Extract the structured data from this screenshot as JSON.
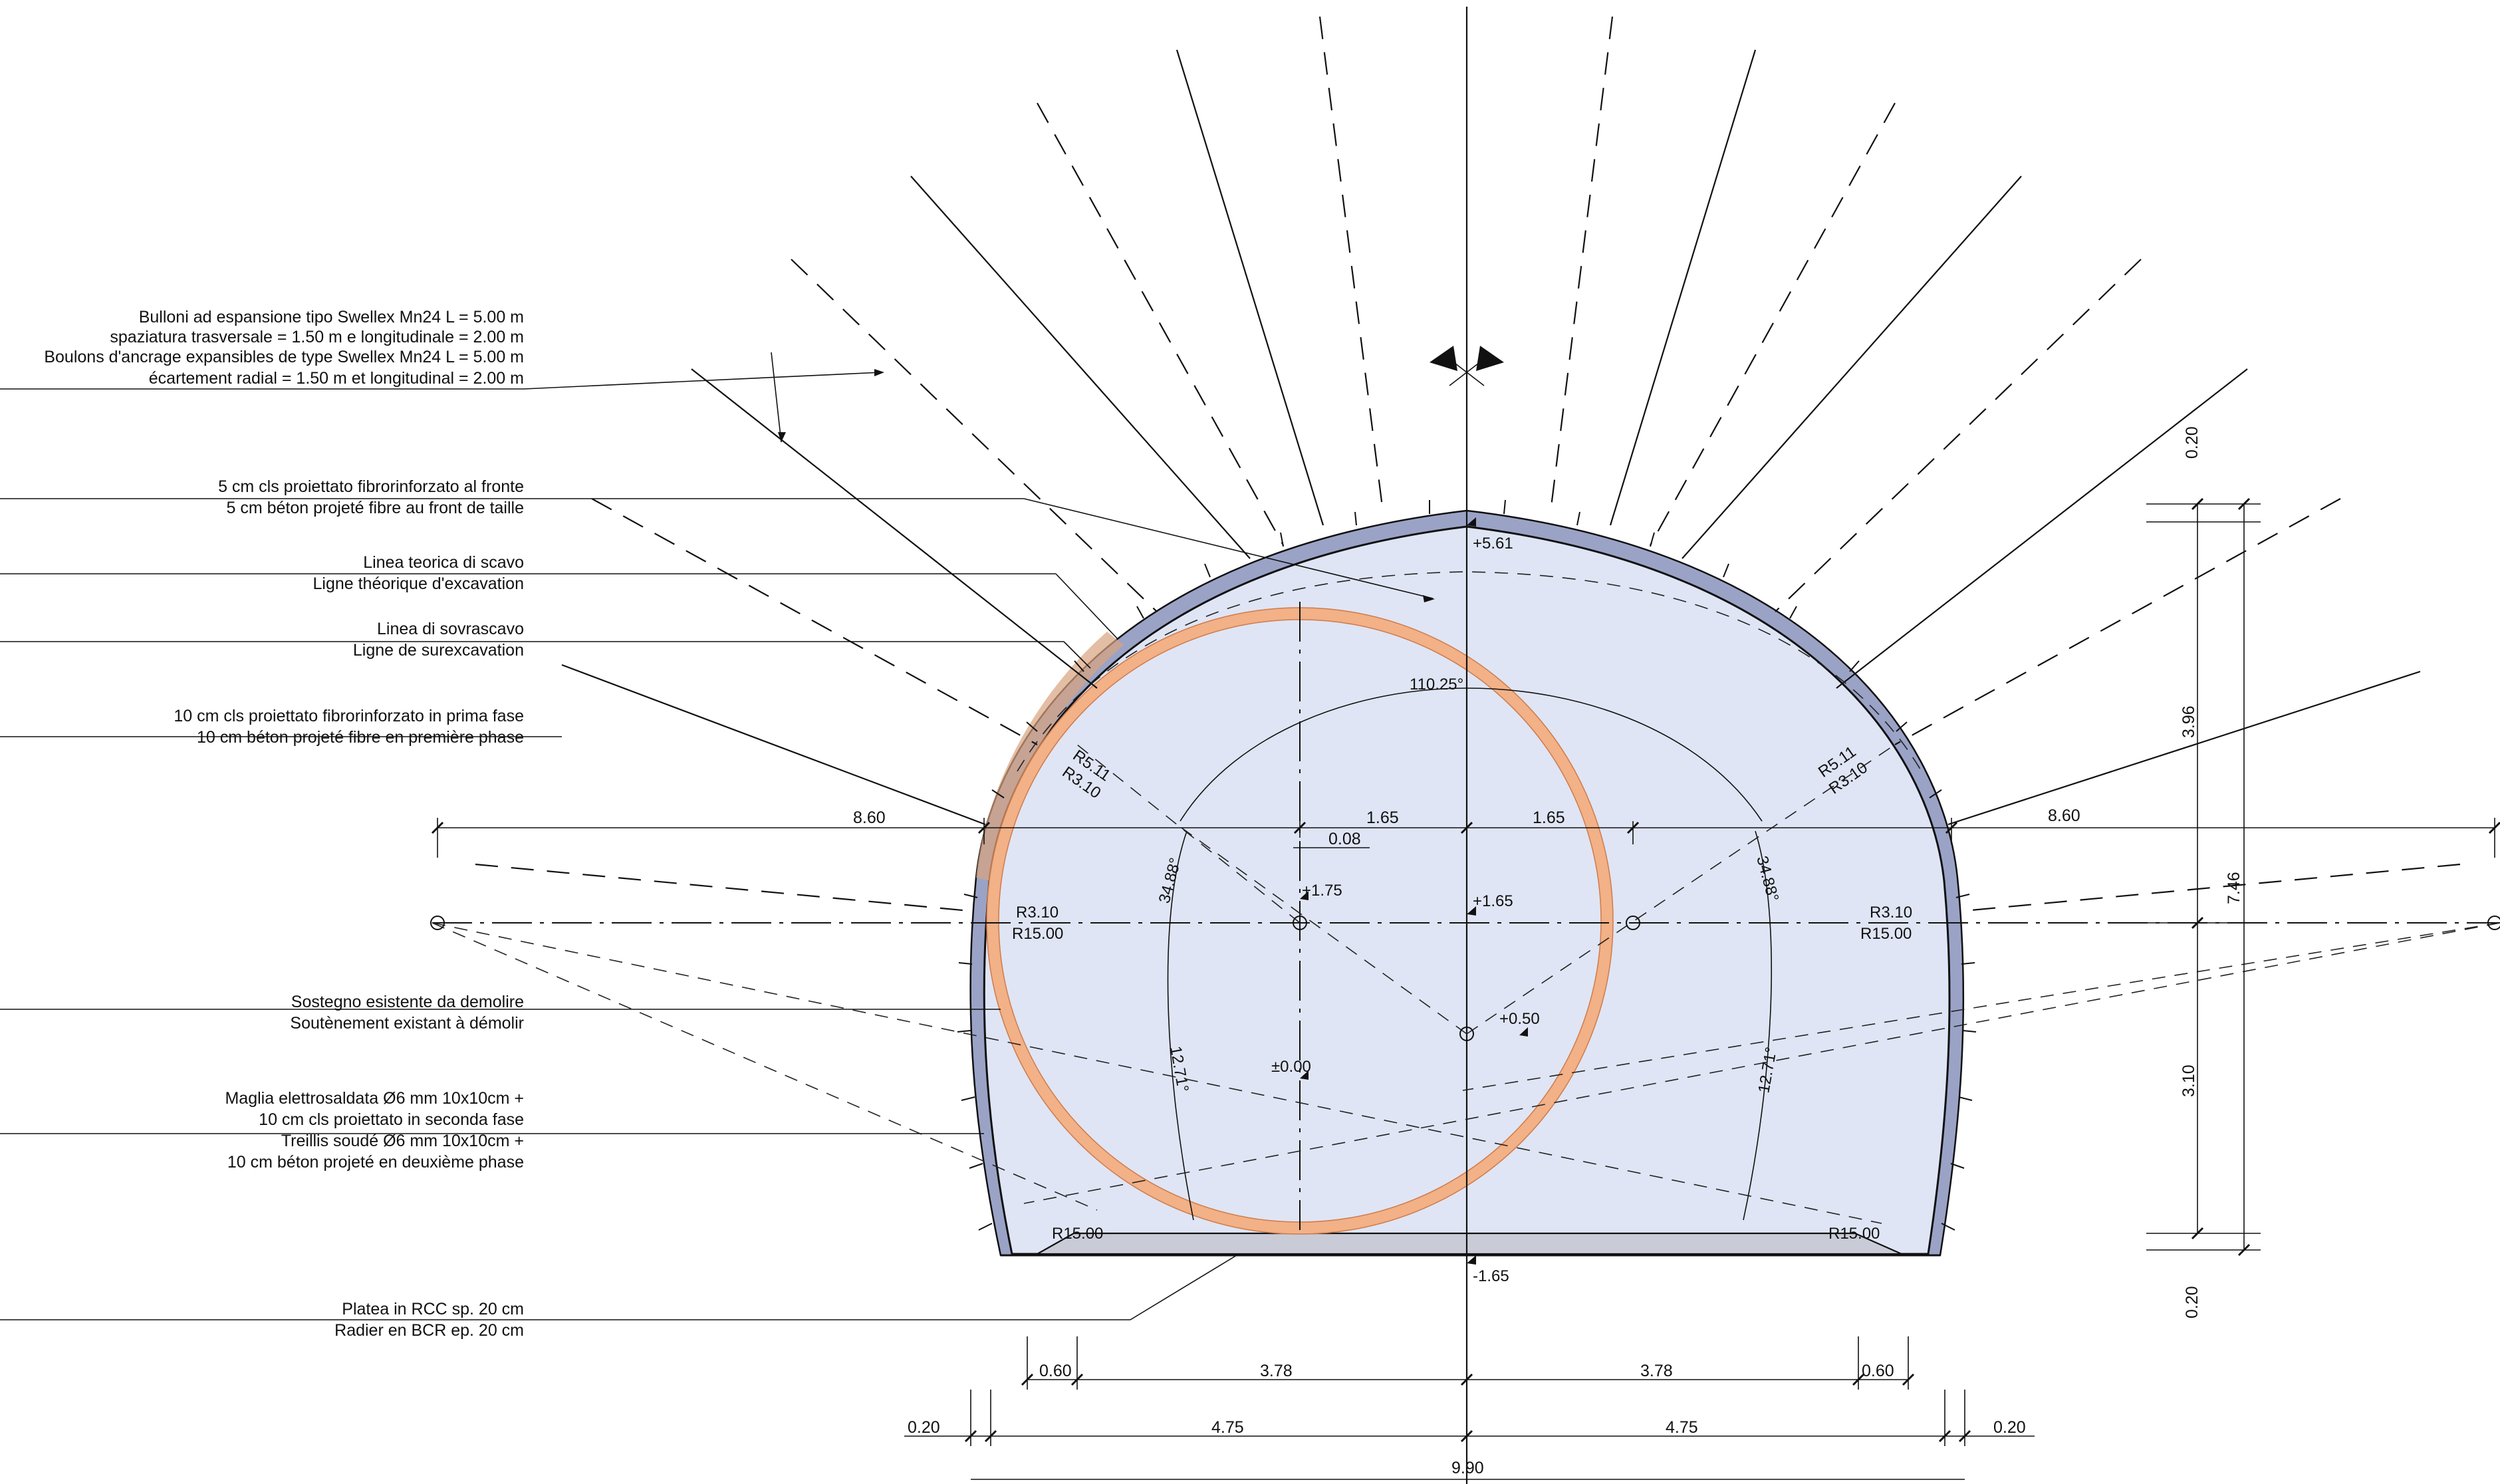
{
  "callouts": {
    "bolts": [
      "Bulloni ad espansione tipo Swellex Mn24 L = 5.00 m",
      "spaziatura trasversale = 1.50 m e longitudinale = 2.00 m",
      "Boulons d'ancrage expansibles de type Swellex Mn24 L = 5.00 m",
      "écartement radial = 1.50 m et longitudinal = 2.00 m"
    ],
    "face_shotcrete": [
      "5 cm cls proiettato fibrorinforzato al fronte",
      "5 cm béton projeté fibre au front de taille"
    ],
    "theoretical_line": [
      "Linea teorica di scavo",
      "Ligne théorique d'excavation"
    ],
    "overbreak_line": [
      "Linea di sovrascavo",
      "Ligne de surexcavation"
    ],
    "first_phase": [
      "10 cm cls proiettato fibrorinforzato in prima fase",
      "10 cm béton projeté fibre en première phase"
    ],
    "existing_support": [
      "Sostegno esistente da demolire",
      "Soutènement existant à démolir"
    ],
    "second_phase": [
      "Maglia elettrosaldata Ø6 mm 10x10cm +",
      "10 cm cls proiettato in seconda fase",
      "Treillis soudé Ø6 mm 10x10cm +",
      "10 cm béton projeté en deuxième phase"
    ],
    "invert": [
      "Platea in RCC sp. 20 cm",
      "Radier en BCR ep. 20 cm"
    ]
  },
  "levels": {
    "crown": "+5.61",
    "center_left": "+1.75",
    "center_mid": "+1.65",
    "center_low": "+0.50",
    "zero": "±0.00",
    "floor": "-1.65"
  },
  "angles": {
    "crown": "110.25°",
    "side_left": "34.88°",
    "side_right": "34.88°",
    "low_left": "12.71°",
    "low_right": "12.71°"
  },
  "radii": {
    "r511_left": "R5.11",
    "r310_left_top": "R3.10",
    "r511_right": "R5.11",
    "r310_right_top": "R3.10",
    "r310_left": "R3.10",
    "r1500_left": "R15.00",
    "r310_right": "R3.10",
    "r1500_right": "R15.00",
    "r1500_bottom_left": "R15.00",
    "r1500_bottom_right": "R15.00"
  },
  "dimensions": {
    "top_left": "8.60",
    "top_right": "8.60",
    "mid_165_left": "1.65",
    "mid_165_right": "1.65",
    "offset": "0.08",
    "bot_060_left": "0.60",
    "bot_378_left": "3.78",
    "bot_378_right": "3.78",
    "bot_060_right": "0.60",
    "bot_020_left": "0.20",
    "bot_475_left": "4.75",
    "bot_475_right": "4.75",
    "bot_020_right": "0.20",
    "total_width": "9.90",
    "v_020_top": "0.20",
    "v_396": "3.96",
    "v_746": "7.46",
    "v_310": "3.10",
    "v_020_bottom": "0.20"
  },
  "colors": {
    "lining_fill": "#dfe5f4",
    "lining_band": "#9aa3c6",
    "existing_support": "#f2b187",
    "overbreak_zone": "#d9a27e"
  }
}
